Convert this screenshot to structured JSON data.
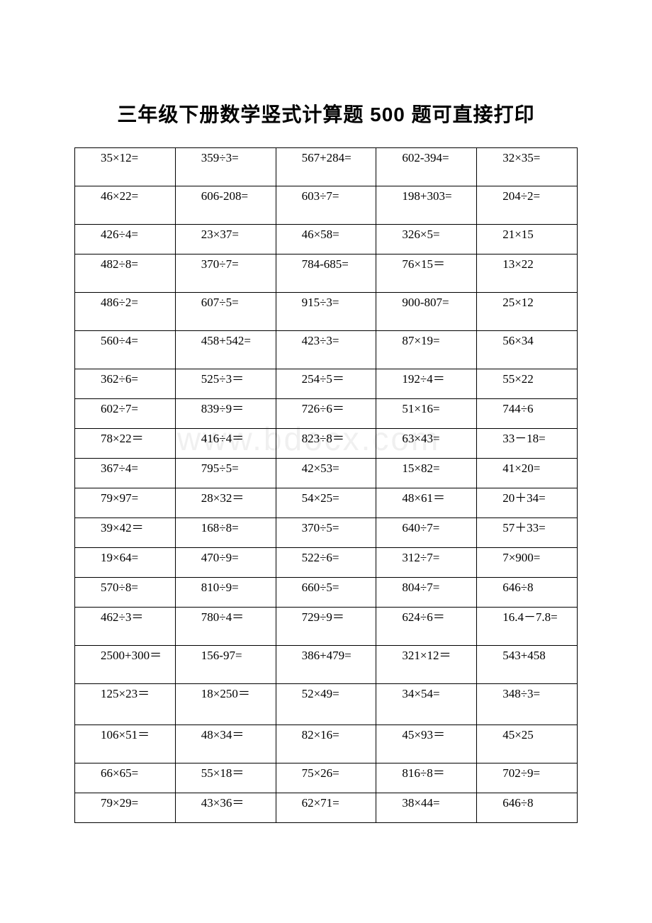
{
  "title": "三年级下册数学竖式计算题 500 题可直接打印",
  "watermark": "www.bdocx.com",
  "table": {
    "rows": [
      [
        {
          "t": "35×12=",
          "cls": "tall"
        },
        {
          "t": "359÷3=",
          "cls": "tall"
        },
        {
          "t": "567+284=",
          "cls": "tall"
        },
        {
          "t": "602-394=",
          "cls": "tall"
        },
        {
          "t": "32×35=",
          "cls": "tall"
        }
      ],
      [
        {
          "t": "46×22=",
          "cls": "tall"
        },
        {
          "t": "606-208=",
          "cls": "tall"
        },
        {
          "t": "603÷7=",
          "cls": "tall"
        },
        {
          "t": "198+303=",
          "cls": "tall"
        },
        {
          "t": "204÷2=",
          "cls": "tall"
        }
      ],
      [
        {
          "t": "426÷4="
        },
        {
          "t": "23×37="
        },
        {
          "t": "46×58="
        },
        {
          "t": "326×5="
        },
        {
          "t": "21×15"
        }
      ],
      [
        {
          "t": "482÷8=",
          "cls": "tall"
        },
        {
          "t": "370÷7=",
          "cls": "tall"
        },
        {
          "t": "784-685=",
          "cls": "tall"
        },
        {
          "t": "76×15＝",
          "cls": "tall"
        },
        {
          "t": "13×22",
          "cls": "tall"
        }
      ],
      [
        {
          "t": "486÷2=",
          "cls": "tall"
        },
        {
          "t": "607÷5=",
          "cls": "tall"
        },
        {
          "t": "915÷3=",
          "cls": "tall"
        },
        {
          "t": "900-807=",
          "cls": "tall"
        },
        {
          "t": "25×12",
          "cls": "tall"
        }
      ],
      [
        {
          "t": "560÷4=",
          "cls": "tall"
        },
        {
          "t": "458+542=",
          "cls": "tall"
        },
        {
          "t": "423÷3=",
          "cls": "tall"
        },
        {
          "t": "87×19=",
          "cls": "tall"
        },
        {
          "t": "56×34",
          "cls": "tall"
        }
      ],
      [
        {
          "t": "362÷6="
        },
        {
          "t": "525÷3＝"
        },
        {
          "t": "254÷5＝"
        },
        {
          "t": "192÷4＝"
        },
        {
          "t": "55×22"
        }
      ],
      [
        {
          "t": "602÷7="
        },
        {
          "t": "839÷9＝"
        },
        {
          "t": "726÷6＝"
        },
        {
          "t": "51×16="
        },
        {
          "t": "744÷6"
        }
      ],
      [
        {
          "t": "78×22＝"
        },
        {
          "t": "416÷4＝"
        },
        {
          "t": "823÷8＝"
        },
        {
          "t": "63×43="
        },
        {
          "t": "33－18="
        }
      ],
      [
        {
          "t": "367÷4="
        },
        {
          "t": "795÷5="
        },
        {
          "t": "42×53="
        },
        {
          "t": "15×82="
        },
        {
          "t": "41×20="
        }
      ],
      [
        {
          "t": "79×97="
        },
        {
          "t": "28×32＝"
        },
        {
          "t": "54×25="
        },
        {
          "t": "48×61＝"
        },
        {
          "t": "20＋34="
        }
      ],
      [
        {
          "t": "39×42＝"
        },
        {
          "t": "168÷8="
        },
        {
          "t": "370÷5="
        },
        {
          "t": "640÷7="
        },
        {
          "t": "57＋33="
        }
      ],
      [
        {
          "t": "19×64="
        },
        {
          "t": "470÷9="
        },
        {
          "t": "522÷6="
        },
        {
          "t": "312÷7="
        },
        {
          "t": "7×900="
        }
      ],
      [
        {
          "t": "570÷8="
        },
        {
          "t": "810÷9="
        },
        {
          "t": "660÷5="
        },
        {
          "t": "804÷7="
        },
        {
          "t": "646÷8"
        }
      ],
      [
        {
          "t": "462÷3＝",
          "cls": "tall"
        },
        {
          "t": "780÷4＝",
          "cls": "tall"
        },
        {
          "t": "729÷9＝",
          "cls": "tall"
        },
        {
          "t": "624÷6＝",
          "cls": "tall"
        },
        {
          "t": "16.4－7.8=",
          "cls": "tall"
        }
      ],
      [
        {
          "t": "2500+300＝",
          "cls": "tall"
        },
        {
          "t": "156-97=",
          "cls": "tall"
        },
        {
          "t": "386+479=",
          "cls": "tall"
        },
        {
          "t": "321×12＝",
          "cls": "tall"
        },
        {
          "t": "543+458",
          "cls": "tall"
        }
      ],
      [
        {
          "t": "125×23＝",
          "cls": "taller"
        },
        {
          "t": "18×250＝",
          "cls": "taller"
        },
        {
          "t": "52×49=",
          "cls": "taller"
        },
        {
          "t": "34×54=",
          "cls": "taller"
        },
        {
          "t": "348÷3=",
          "cls": "taller"
        }
      ],
      [
        {
          "t": "106×51＝",
          "cls": "tall"
        },
        {
          "t": "48×34＝",
          "cls": "tall"
        },
        {
          "t": "82×16=",
          "cls": "tall"
        },
        {
          "t": "45×93＝",
          "cls": "tall"
        },
        {
          "t": "45×25",
          "cls": "tall"
        }
      ],
      [
        {
          "t": "66×65="
        },
        {
          "t": "55×18＝"
        },
        {
          "t": "75×26="
        },
        {
          "t": "816÷8＝"
        },
        {
          "t": "702÷9="
        }
      ],
      [
        {
          "t": "79×29="
        },
        {
          "t": "43×36＝"
        },
        {
          "t": "62×71="
        },
        {
          "t": "38×44="
        },
        {
          "t": "646÷8"
        }
      ]
    ]
  }
}
